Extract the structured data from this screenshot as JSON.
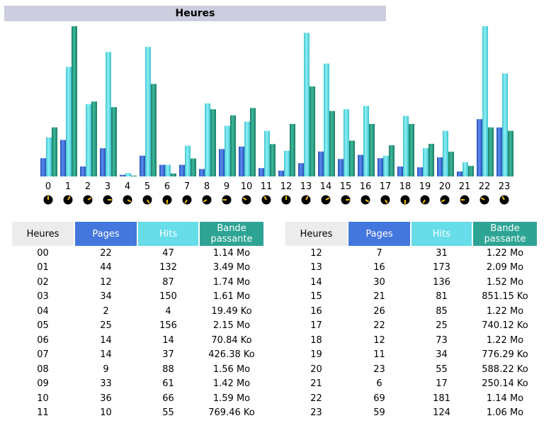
{
  "title": "Heures",
  "colors": {
    "pages": "#4477dd",
    "hits": "#66dde9",
    "bandwidth": "#2ea495",
    "clock_face": "#000000",
    "clock_hand": "#f2c200",
    "tab": "#cccdde"
  },
  "columns": {
    "hours": "Heures",
    "pages": "Pages",
    "hits": "Hits",
    "bandwidth": "Bande passante"
  },
  "chart_data": {
    "type": "bar",
    "categories": [
      "0",
      "1",
      "2",
      "3",
      "4",
      "5",
      "6",
      "7",
      "8",
      "9",
      "10",
      "11",
      "12",
      "13",
      "14",
      "15",
      "16",
      "17",
      "18",
      "19",
      "20",
      "21",
      "22",
      "23"
    ],
    "series": [
      {
        "name": "Pages",
        "values": [
          22,
          44,
          12,
          34,
          2,
          25,
          14,
          14,
          9,
          33,
          36,
          10,
          7,
          16,
          30,
          21,
          26,
          22,
          12,
          11,
          23,
          6,
          69,
          59
        ]
      },
      {
        "name": "Hits",
        "values": [
          47,
          132,
          87,
          150,
          4,
          156,
          14,
          37,
          88,
          61,
          66,
          55,
          31,
          173,
          136,
          81,
          85,
          25,
          73,
          34,
          55,
          17,
          181,
          124
        ]
      },
      {
        "name": "Bande passante",
        "unit": "Ko",
        "values": [
          1167.36,
          3573.76,
          1781.76,
          1648.64,
          19.49,
          2201.6,
          70.84,
          426.38,
          1597.44,
          1454.08,
          1628.16,
          769.46,
          1249.28,
          2140.16,
          1556.48,
          851.15,
          1249.28,
          740.12,
          1249.28,
          776.29,
          588.22,
          250.14,
          1167.36,
          1085.44
        ]
      }
    ]
  },
  "table_left": [
    {
      "hour": "00",
      "pages": "22",
      "hits": "47",
      "bw": "1.14 Mo"
    },
    {
      "hour": "01",
      "pages": "44",
      "hits": "132",
      "bw": "3.49 Mo"
    },
    {
      "hour": "02",
      "pages": "12",
      "hits": "87",
      "bw": "1.74 Mo"
    },
    {
      "hour": "03",
      "pages": "34",
      "hits": "150",
      "bw": "1.61 Mo"
    },
    {
      "hour": "04",
      "pages": "2",
      "hits": "4",
      "bw": "19.49 Ko"
    },
    {
      "hour": "05",
      "pages": "25",
      "hits": "156",
      "bw": "2.15 Mo"
    },
    {
      "hour": "06",
      "pages": "14",
      "hits": "14",
      "bw": "70.84 Ko"
    },
    {
      "hour": "07",
      "pages": "14",
      "hits": "37",
      "bw": "426.38 Ko"
    },
    {
      "hour": "08",
      "pages": "9",
      "hits": "88",
      "bw": "1.56 Mo"
    },
    {
      "hour": "09",
      "pages": "33",
      "hits": "61",
      "bw": "1.42 Mo"
    },
    {
      "hour": "10",
      "pages": "36",
      "hits": "66",
      "bw": "1.59 Mo"
    },
    {
      "hour": "11",
      "pages": "10",
      "hits": "55",
      "bw": "769.46 Ko"
    }
  ],
  "table_right": [
    {
      "hour": "12",
      "pages": "7",
      "hits": "31",
      "bw": "1.22 Mo"
    },
    {
      "hour": "13",
      "pages": "16",
      "hits": "173",
      "bw": "2.09 Mo"
    },
    {
      "hour": "14",
      "pages": "30",
      "hits": "136",
      "bw": "1.52 Mo"
    },
    {
      "hour": "15",
      "pages": "21",
      "hits": "81",
      "bw": "851.15 Ko"
    },
    {
      "hour": "16",
      "pages": "26",
      "hits": "85",
      "bw": "1.22 Mo"
    },
    {
      "hour": "17",
      "pages": "22",
      "hits": "25",
      "bw": "740.12 Ko"
    },
    {
      "hour": "18",
      "pages": "12",
      "hits": "73",
      "bw": "1.22 Mo"
    },
    {
      "hour": "19",
      "pages": "11",
      "hits": "34",
      "bw": "776.29 Ko"
    },
    {
      "hour": "20",
      "pages": "23",
      "hits": "55",
      "bw": "588.22 Ko"
    },
    {
      "hour": "21",
      "pages": "6",
      "hits": "17",
      "bw": "250.14 Ko"
    },
    {
      "hour": "22",
      "pages": "69",
      "hits": "181",
      "bw": "1.14 Mo"
    },
    {
      "hour": "23",
      "pages": "59",
      "hits": "124",
      "bw": "1.06 Mo"
    }
  ]
}
